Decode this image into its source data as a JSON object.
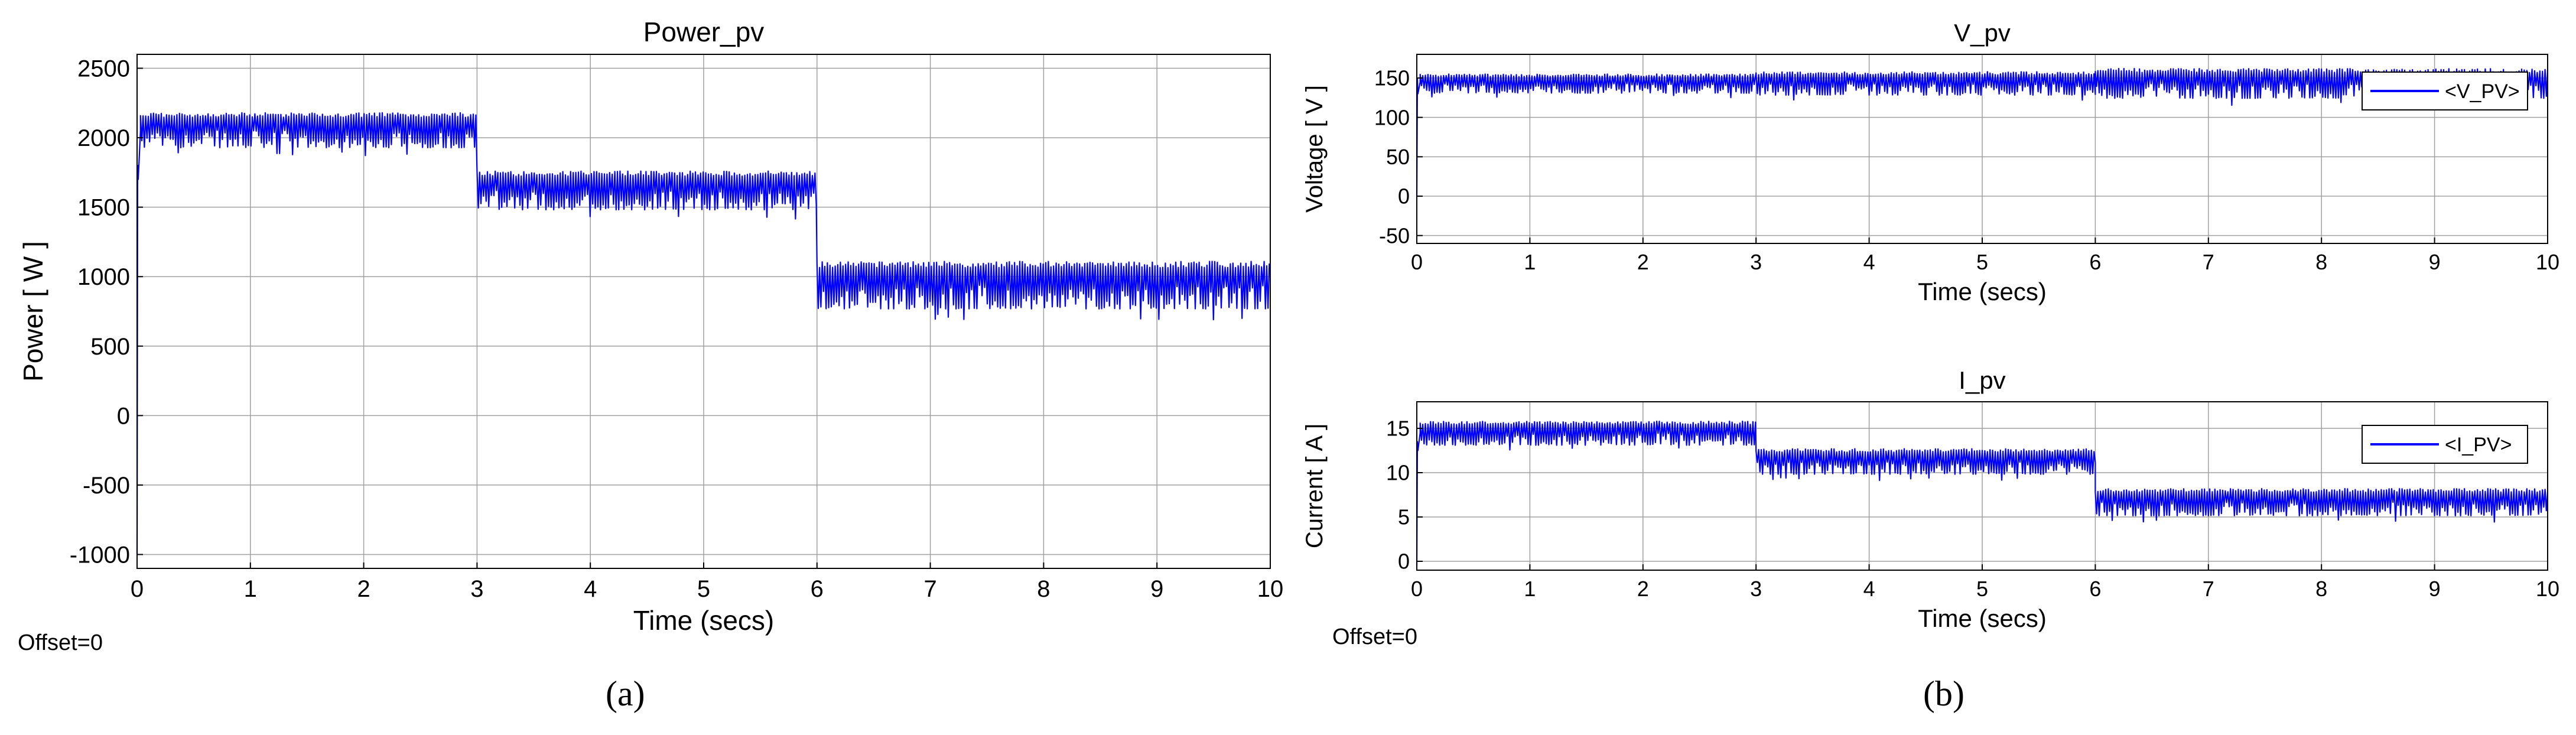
{
  "figure": {
    "captions": [
      "(a)",
      "(b)"
    ],
    "offset_labels": [
      "Offset=0",
      "Offset=0"
    ],
    "colors": {
      "trace": "#0000ff",
      "grid": "#a0a0a0",
      "frame": "#000000",
      "bg": "#ffffff"
    }
  },
  "chart_data": [
    {
      "id": "a",
      "type": "line",
      "title": "Power_pv",
      "xlabel": "Time (secs)",
      "ylabel": "Power [ W ]",
      "xlim": [
        0,
        10
      ],
      "ylim": [
        -1100,
        2600
      ],
      "xticks": [
        0,
        1,
        2,
        3,
        4,
        5,
        6,
        7,
        8,
        9,
        10
      ],
      "yticks": [
        -1000,
        -500,
        0,
        500,
        1000,
        1500,
        2000,
        2500
      ],
      "grid": true,
      "series": [
        {
          "color": "#0000ff",
          "start_transient": {
            "x": [
              0,
              0.005,
              0.01,
              0.03
            ],
            "y": [
              -1000,
              1800,
              1700,
              2050
            ]
          },
          "segments": [
            {
              "x": [
                0.03,
                3.0
              ],
              "upper": 2180,
              "lower": 1900
            },
            {
              "x": [
                3.0,
                6.0
              ],
              "upper": 1760,
              "lower": 1450
            },
            {
              "x": [
                6.0,
                10.0
              ],
              "upper": 1110,
              "lower": 730
            }
          ]
        }
      ]
    },
    {
      "id": "b1",
      "type": "line",
      "title": "V_pv",
      "xlabel": "Time (secs)",
      "ylabel": "Voltage [ V ]",
      "xlim": [
        0,
        10
      ],
      "ylim": [
        -60,
        180
      ],
      "xticks": [
        0,
        1,
        2,
        3,
        4,
        5,
        6,
        7,
        8,
        9,
        10
      ],
      "yticks": [
        -50,
        0,
        50,
        100,
        150
      ],
      "grid": true,
      "legend": {
        "entries": [
          "<V_PV>"
        ],
        "placement": "top-right"
      },
      "series": [
        {
          "name": "<V_PV>",
          "color": "#0000ff",
          "start_transient": {
            "x": [
              0,
              0.005,
              0.01,
              0.03
            ],
            "y": [
              0,
              150,
              130,
              145
            ]
          },
          "segments": [
            {
              "x": [
                0.03,
                3.0
              ],
              "upper": 155,
              "lower": 128
            },
            {
              "x": [
                3.0,
                6.0
              ],
              "upper": 158,
              "lower": 125
            },
            {
              "x": [
                6.0,
                10.0
              ],
              "upper": 162,
              "lower": 120
            }
          ]
        }
      ]
    },
    {
      "id": "b2",
      "type": "line",
      "title": "I_pv",
      "xlabel": "Time (secs)",
      "ylabel": "Current [ A ]",
      "xlim": [
        0,
        10
      ],
      "ylim": [
        -1,
        18
      ],
      "xticks": [
        0,
        1,
        2,
        3,
        4,
        5,
        6,
        7,
        8,
        9,
        10
      ],
      "yticks": [
        0,
        5,
        10,
        15
      ],
      "grid": true,
      "legend": {
        "entries": [
          "<I_PV>"
        ],
        "placement": "top-right"
      },
      "series": [
        {
          "name": "<I_PV>",
          "color": "#0000ff",
          "start_transient": {
            "x": [
              0,
              0.005,
              0.01,
              0.03
            ],
            "y": [
              -0.5,
              13.5,
              12.5,
              14.5
            ]
          },
          "segments": [
            {
              "x": [
                0.03,
                3.0
              ],
              "upper": 15.8,
              "lower": 12.8
            },
            {
              "x": [
                3.0,
                6.0
              ],
              "upper": 12.7,
              "lower": 9.5
            },
            {
              "x": [
                6.0,
                10.0
              ],
              "upper": 8.2,
              "lower": 4.8
            }
          ]
        }
      ]
    }
  ]
}
